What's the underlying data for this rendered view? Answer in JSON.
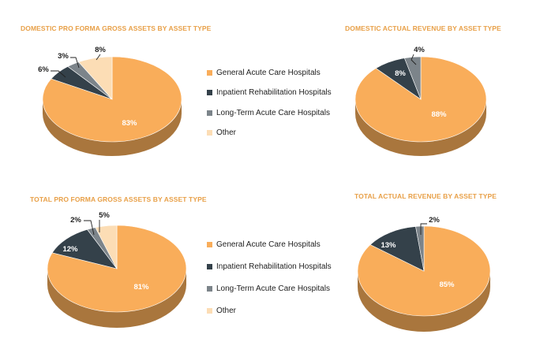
{
  "colors": {
    "general_acute": "#F9AD5A",
    "inpatient_rehab": "#34414A",
    "ltach": "#7C848A",
    "other": "#FCDDB5",
    "title": "#E8A048"
  },
  "legends": {
    "domestic_assets": [
      {
        "label": "General Acute Care Hospitals",
        "color": "#F9AD5A"
      },
      {
        "label": "Inpatient Rehabilitation Hospitals",
        "color": "#34414A"
      },
      {
        "label": "Long-Term Acute Care Hospitals",
        "color": "#7C848A"
      },
      {
        "label": "Other",
        "color": "#FCDDB5"
      }
    ],
    "total_assets": [
      {
        "label": "General Acute Care Hospitals",
        "color": "#F9AD5A"
      },
      {
        "label": "Inpatient Rehabilitation Hospitals",
        "color": "#34414A"
      },
      {
        "label": "Long-Term Acute Care Hospitals",
        "color": "#7C848A"
      },
      {
        "label": "Other",
        "color": "#FCDDB5"
      }
    ]
  },
  "chart_data": [
    {
      "id": "domestic-assets",
      "type": "pie",
      "title": "DOMESTIC PRO FORMA GROSS ASSETS BY ASSET TYPE",
      "legend": "right",
      "categories": [
        "General Acute Care Hospitals",
        "Inpatient Rehabilitation Hospitals",
        "Long-Term Acute Care Hospitals",
        "Other"
      ],
      "values": [
        83,
        6,
        3,
        8
      ],
      "labels": [
        "83%",
        "6%",
        "3%",
        "8%"
      ]
    },
    {
      "id": "domestic-revenue",
      "type": "pie",
      "title": "DOMESTIC ACTUAL REVENUE BY ASSET TYPE",
      "legend": "none",
      "categories": [
        "General Acute Care Hospitals",
        "Inpatient Rehabilitation Hospitals",
        "Long-Term Acute Care Hospitals"
      ],
      "values": [
        88,
        8,
        4
      ],
      "labels": [
        "88%",
        "8%",
        "4%"
      ]
    },
    {
      "id": "total-assets",
      "type": "pie",
      "title": "TOTAL PRO FORMA GROSS ASSETS BY ASSET TYPE",
      "legend": "right",
      "categories": [
        "General Acute Care Hospitals",
        "Inpatient Rehabilitation Hospitals",
        "Long-Term Acute Care Hospitals",
        "Other"
      ],
      "values": [
        81,
        12,
        2,
        5
      ],
      "labels": [
        "81%",
        "12%",
        "2%",
        "5%"
      ]
    },
    {
      "id": "total-revenue",
      "type": "pie",
      "title": "TOTAL ACTUAL REVENUE BY ASSET TYPE",
      "legend": "none",
      "categories": [
        "General Acute Care Hospitals",
        "Inpatient Rehabilitation Hospitals",
        "Long-Term Acute Care Hospitals"
      ],
      "values": [
        85,
        13,
        2
      ],
      "labels": [
        "85%",
        "13%",
        "2%"
      ]
    }
  ]
}
